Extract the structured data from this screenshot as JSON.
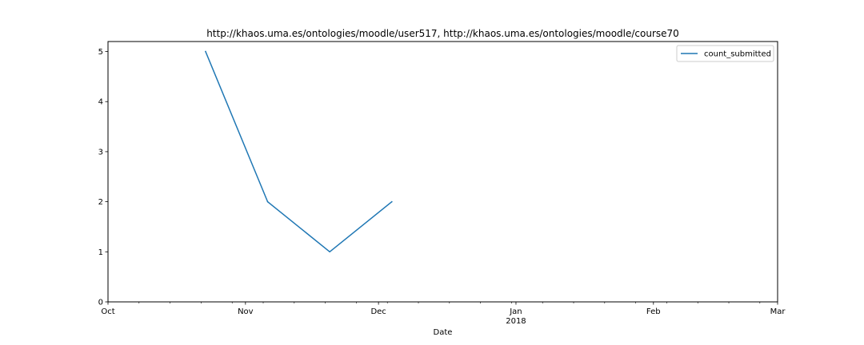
{
  "chart_data": {
    "type": "line",
    "title": "http://khaos.uma.es/ontologies/moodle/user517, http://khaos.uma.es/ontologies/moodle/course70",
    "xlabel": "Date",
    "ylabel": "",
    "x_type": "date",
    "xlim": [
      "2017-10-01",
      "2018-03-01"
    ],
    "ylim": [
      0,
      5.2
    ],
    "x_ticks_major": [
      {
        "date": "2017-10-01",
        "label": "Oct",
        "sublabel": ""
      },
      {
        "date": "2017-11-01",
        "label": "Nov",
        "sublabel": ""
      },
      {
        "date": "2017-12-01",
        "label": "Dec",
        "sublabel": ""
      },
      {
        "date": "2018-01-01",
        "label": "Jan",
        "sublabel": "2018"
      },
      {
        "date": "2018-02-01",
        "label": "Feb",
        "sublabel": ""
      },
      {
        "date": "2018-03-01",
        "label": "Mar",
        "sublabel": ""
      }
    ],
    "x_ticks_minor": [
      "2017-10-08",
      "2017-10-15",
      "2017-10-22",
      "2017-10-29",
      "2017-11-05",
      "2017-11-12",
      "2017-11-19",
      "2017-11-26",
      "2017-12-03",
      "2017-12-10",
      "2017-12-17",
      "2017-12-24",
      "2017-12-31",
      "2018-01-07",
      "2018-01-14",
      "2018-01-21",
      "2018-01-28",
      "2018-02-04",
      "2018-02-11",
      "2018-02-18",
      "2018-02-25"
    ],
    "y_ticks": [
      "0",
      "1",
      "2",
      "3",
      "4",
      "5"
    ],
    "series": [
      {
        "name": "count_submitted",
        "color": "#1f77b4",
        "x": [
          "2017-10-23",
          "2017-11-06",
          "2017-11-20",
          "2017-12-04"
        ],
        "y": [
          5,
          2,
          1,
          2
        ]
      }
    ],
    "legend": {
      "position": "upper-right"
    },
    "grid": false
  }
}
